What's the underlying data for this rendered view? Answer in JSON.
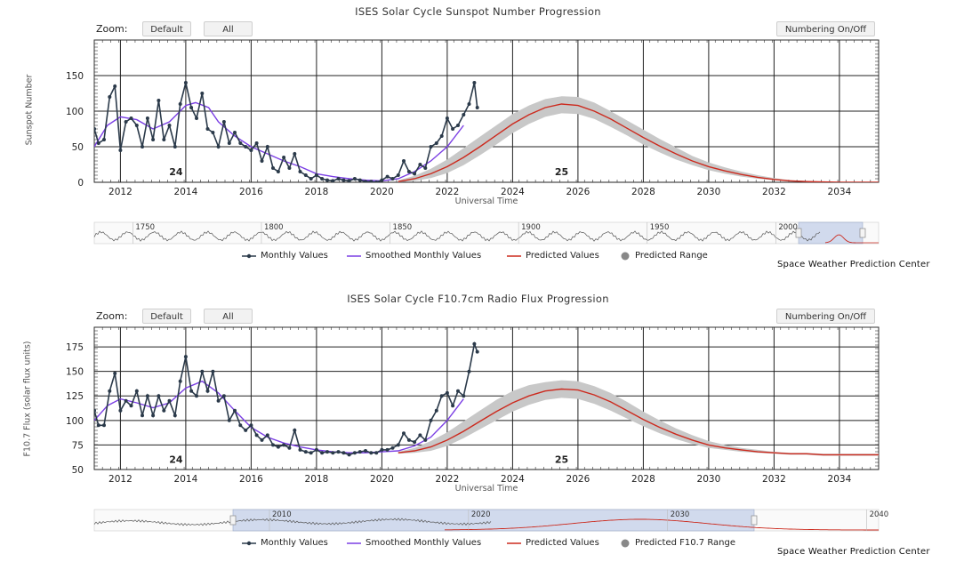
{
  "zoom_label": "Zoom:",
  "zoom_default": "Default",
  "zoom_all": "All",
  "numbering_toggle": "Numbering On/Off",
  "credit": "Space Weather Prediction Center",
  "colors": {
    "monthly": "#2b3a4a",
    "smoothed": "#7b3fe4",
    "predicted": "#cc2a1e",
    "range": "#c8c8c8",
    "navigator_mask": "#c9d4ea"
  },
  "chart_data": [
    {
      "type": "line",
      "title": "ISES Solar Cycle Sunspot Number Progression",
      "xlabel": "Universal Time",
      "ylabel": "Sunspot Number",
      "xlim": [
        2011.2,
        2035.2
      ],
      "ylim": [
        0,
        200
      ],
      "yticks": [
        0,
        50,
        100,
        150
      ],
      "xticks": [
        2012,
        2014,
        2016,
        2018,
        2020,
        2022,
        2024,
        2026,
        2028,
        2030,
        2032,
        2034
      ],
      "cycle_labels": [
        {
          "x": 2013.7,
          "y": 10,
          "text": "24"
        },
        {
          "x": 2025.5,
          "y": 10,
          "text": "25"
        }
      ],
      "series": [
        {
          "name": "Monthly Values",
          "kind": "monthly",
          "x": [
            2011.2,
            2011.33,
            2011.5,
            2011.67,
            2011.83,
            2012.0,
            2012.17,
            2012.33,
            2012.5,
            2012.67,
            2012.83,
            2013.0,
            2013.17,
            2013.33,
            2013.5,
            2013.67,
            2013.83,
            2014.0,
            2014.17,
            2014.33,
            2014.5,
            2014.67,
            2014.83,
            2015.0,
            2015.17,
            2015.33,
            2015.5,
            2015.67,
            2015.83,
            2016.0,
            2016.17,
            2016.33,
            2016.5,
            2016.67,
            2016.83,
            2017.0,
            2017.17,
            2017.33,
            2017.5,
            2017.67,
            2017.83,
            2018.0,
            2018.17,
            2018.33,
            2018.5,
            2018.67,
            2018.83,
            2019.0,
            2019.17,
            2019.33,
            2019.5,
            2019.67,
            2019.83,
            2020.0,
            2020.17,
            2020.33,
            2020.5,
            2020.67,
            2020.83,
            2021.0,
            2021.17,
            2021.33,
            2021.5,
            2021.67,
            2021.83,
            2022.0,
            2022.17,
            2022.33,
            2022.5,
            2022.67,
            2022.83,
            2022.92
          ],
          "y": [
            75,
            55,
            60,
            120,
            135,
            45,
            85,
            90,
            80,
            50,
            90,
            60,
            115,
            60,
            80,
            50,
            110,
            140,
            105,
            90,
            125,
            75,
            70,
            50,
            85,
            55,
            70,
            55,
            50,
            45,
            55,
            30,
            50,
            20,
            15,
            35,
            20,
            40,
            15,
            10,
            5,
            10,
            5,
            3,
            2,
            5,
            3,
            2,
            5,
            3,
            1,
            1,
            0,
            3,
            8,
            5,
            10,
            30,
            15,
            12,
            25,
            20,
            50,
            55,
            65,
            90,
            75,
            80,
            95,
            110,
            140,
            105
          ]
        },
        {
          "name": "Smoothed Monthly Values",
          "kind": "smoothed",
          "x": [
            2011.2,
            2011.6,
            2012.0,
            2012.5,
            2013.0,
            2013.5,
            2014.0,
            2014.3,
            2014.7,
            2015.0,
            2015.5,
            2016.0,
            2016.5,
            2017.0,
            2017.5,
            2018.0,
            2018.5,
            2019.0,
            2019.5,
            2020.0,
            2020.5,
            2021.0,
            2021.5,
            2022.0,
            2022.5
          ],
          "y": [
            50,
            80,
            92,
            88,
            75,
            85,
            108,
            112,
            105,
            85,
            65,
            50,
            40,
            30,
            22,
            12,
            8,
            5,
            3,
            2,
            5,
            15,
            30,
            50,
            80
          ]
        },
        {
          "name": "Predicted Values",
          "kind": "predicted",
          "x": [
            2020.5,
            2021,
            2021.5,
            2022,
            2022.5,
            2023,
            2023.5,
            2024,
            2024.5,
            2025,
            2025.5,
            2026,
            2026.5,
            2027,
            2027.5,
            2028,
            2028.5,
            2029,
            2029.5,
            2030,
            2030.5,
            2031,
            2031.5,
            2032,
            2032.5,
            2033,
            2033.5,
            2034,
            2034.5,
            2035,
            2035.2
          ],
          "y": [
            1,
            5,
            12,
            22,
            35,
            50,
            66,
            82,
            95,
            105,
            110,
            108,
            100,
            89,
            76,
            63,
            51,
            40,
            30,
            22,
            16,
            11,
            7,
            4,
            2,
            1,
            0.5,
            0,
            0,
            0,
            0
          ]
        },
        {
          "name": "Predicted Range",
          "kind": "range",
          "x": [
            2020.5,
            2021,
            2021.5,
            2022,
            2022.5,
            2023,
            2023.5,
            2024,
            2024.5,
            2025,
            2025.5,
            2026,
            2026.5,
            2027,
            2027.5,
            2028,
            2028.5,
            2029,
            2029.5,
            2030,
            2030.5,
            2031,
            2031.5,
            2032,
            2032.5,
            2033,
            2033.5,
            2034,
            2034.5,
            2035,
            2035.2
          ],
          "low": [
            0,
            2,
            6,
            13,
            24,
            38,
            53,
            69,
            82,
            92,
            97,
            96,
            89,
            78,
            66,
            53,
            42,
            32,
            24,
            17,
            12,
            8,
            5,
            3,
            1,
            0.5,
            0,
            0,
            0,
            0,
            0
          ],
          "high": [
            3,
            9,
            19,
            32,
            48,
            64,
            80,
            96,
            108,
            117,
            121,
            120,
            112,
            100,
            87,
            74,
            61,
            49,
            37,
            28,
            21,
            15,
            10,
            6,
            3,
            2,
            1,
            0,
            0,
            0,
            0
          ]
        }
      ],
      "navigator": {
        "labels": [
          "1750",
          "1800",
          "1850",
          "1900",
          "1950",
          "2000"
        ],
        "xlim": [
          1735,
          2040
        ]
      }
    },
    {
      "type": "line",
      "title": "ISES Solar Cycle F10.7cm Radio Flux Progression",
      "xlabel": "Universal Time",
      "ylabel": "F10.7 Flux (solar flux units)",
      "xlim": [
        2011.2,
        2035.2
      ],
      "ylim": [
        50,
        195
      ],
      "yticks": [
        50,
        75,
        100,
        125,
        150,
        175
      ],
      "xticks": [
        2012,
        2014,
        2016,
        2018,
        2020,
        2022,
        2024,
        2026,
        2028,
        2030,
        2032,
        2034
      ],
      "cycle_labels": [
        {
          "x": 2013.7,
          "y": 57,
          "text": "24"
        },
        {
          "x": 2025.5,
          "y": 57,
          "text": "25"
        }
      ],
      "series": [
        {
          "name": "Monthly Values",
          "kind": "monthly",
          "x": [
            2011.2,
            2011.33,
            2011.5,
            2011.67,
            2011.83,
            2012.0,
            2012.17,
            2012.33,
            2012.5,
            2012.67,
            2012.83,
            2013.0,
            2013.17,
            2013.33,
            2013.5,
            2013.67,
            2013.83,
            2014.0,
            2014.17,
            2014.33,
            2014.5,
            2014.67,
            2014.83,
            2015.0,
            2015.17,
            2015.33,
            2015.5,
            2015.67,
            2015.83,
            2016.0,
            2016.17,
            2016.33,
            2016.5,
            2016.67,
            2016.83,
            2017.0,
            2017.17,
            2017.33,
            2017.5,
            2017.67,
            2017.83,
            2018.0,
            2018.17,
            2018.33,
            2018.5,
            2018.67,
            2018.83,
            2019.0,
            2019.17,
            2019.33,
            2019.5,
            2019.67,
            2019.83,
            2020.0,
            2020.17,
            2020.33,
            2020.5,
            2020.67,
            2020.83,
            2021.0,
            2021.17,
            2021.33,
            2021.5,
            2021.67,
            2021.83,
            2022.0,
            2022.17,
            2022.33,
            2022.5,
            2022.67,
            2022.83,
            2022.92
          ],
          "y": [
            110,
            95,
            95,
            130,
            148,
            110,
            120,
            115,
            130,
            105,
            125,
            105,
            125,
            110,
            120,
            105,
            140,
            165,
            130,
            125,
            150,
            130,
            150,
            120,
            125,
            100,
            110,
            95,
            90,
            95,
            85,
            80,
            85,
            75,
            73,
            75,
            72,
            90,
            70,
            68,
            67,
            70,
            67,
            68,
            67,
            68,
            67,
            65,
            67,
            68,
            69,
            67,
            67,
            70,
            70,
            72,
            75,
            87,
            80,
            78,
            85,
            80,
            100,
            110,
            125,
            128,
            115,
            130,
            125,
            150,
            178,
            170
          ]
        },
        {
          "name": "Smoothed Monthly Values",
          "kind": "smoothed",
          "x": [
            2011.2,
            2011.6,
            2012.0,
            2012.5,
            2013.0,
            2013.5,
            2014.0,
            2014.5,
            2015.0,
            2015.5,
            2016.0,
            2016.5,
            2017.0,
            2017.5,
            2018.0,
            2018.5,
            2019.0,
            2019.5,
            2020.0,
            2020.5,
            2021.0,
            2021.5,
            2022.0,
            2022.5
          ],
          "y": [
            100,
            115,
            122,
            118,
            113,
            118,
            133,
            140,
            128,
            110,
            93,
            83,
            77,
            73,
            70,
            68,
            67,
            67,
            68,
            69,
            74,
            83,
            100,
            122
          ]
        },
        {
          "name": "Predicted Values",
          "kind": "predicted",
          "x": [
            2020.5,
            2021,
            2021.5,
            2022,
            2022.5,
            2023,
            2023.5,
            2024,
            2024.5,
            2025,
            2025.5,
            2026,
            2026.5,
            2027,
            2027.5,
            2028,
            2028.5,
            2029,
            2029.5,
            2030,
            2030.5,
            2031,
            2031.5,
            2032,
            2032.5,
            2033,
            2033.5,
            2034,
            2034.5,
            2035,
            2035.2
          ],
          "y": [
            67,
            69,
            73,
            80,
            89,
            99,
            109,
            118,
            125,
            130,
            132,
            131,
            126,
            119,
            110,
            101,
            93,
            86,
            80,
            75,
            72,
            70,
            68,
            67,
            66,
            66,
            65,
            65,
            65,
            65,
            65
          ]
        },
        {
          "name": "Predicted F10.7 Range",
          "kind": "range",
          "x": [
            2020.5,
            2021,
            2021.5,
            2022,
            2022.5,
            2023,
            2023.5,
            2024,
            2024.5,
            2025,
            2025.5,
            2026,
            2026.5,
            2027,
            2027.5,
            2028,
            2028.5,
            2029,
            2029.5,
            2030,
            2030.5,
            2031,
            2031.5,
            2032,
            2032.5,
            2033,
            2033.5,
            2034,
            2034.5,
            2035,
            2035.2
          ],
          "low": [
            66,
            67,
            69,
            74,
            82,
            91,
            100,
            109,
            116,
            121,
            123,
            122,
            117,
            110,
            102,
            94,
            87,
            81,
            76,
            72,
            70,
            68,
            67,
            66,
            65,
            65,
            64,
            64,
            64,
            64,
            64
          ],
          "high": [
            68,
            72,
            79,
            88,
            99,
            110,
            121,
            130,
            136,
            139,
            141,
            140,
            135,
            128,
            119,
            109,
            100,
            92,
            85,
            79,
            75,
            72,
            70,
            68,
            67,
            67,
            66,
            66,
            66,
            66,
            66
          ]
        }
      ],
      "navigator": {
        "labels": [
          "2010",
          "2020",
          "2030",
          "2040"
        ],
        "xlim": [
          2001.2,
          2040.6
        ]
      }
    }
  ],
  "legends": [
    {
      "items": [
        {
          "name": "Monthly Values",
          "kind": "monthly"
        },
        {
          "name": "Smoothed Monthly Values",
          "kind": "smoothed"
        },
        {
          "name": "Predicted Values",
          "kind": "predicted"
        },
        {
          "name": "Predicted Range",
          "kind": "range"
        }
      ]
    },
    {
      "items": [
        {
          "name": "Monthly Values",
          "kind": "monthly"
        },
        {
          "name": "Smoothed Monthly Values",
          "kind": "smoothed"
        },
        {
          "name": "Predicted Values",
          "kind": "predicted"
        },
        {
          "name": "Predicted F10.7 Range",
          "kind": "range"
        }
      ]
    }
  ]
}
